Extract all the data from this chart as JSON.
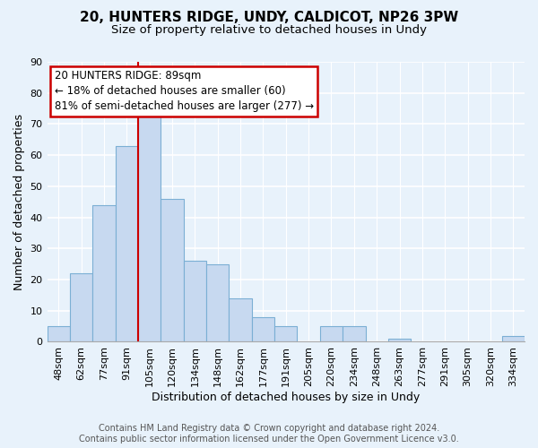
{
  "title_line1": "20, HUNTERS RIDGE, UNDY, CALDICOT, NP26 3PW",
  "title_line2": "Size of property relative to detached houses in Undy",
  "xlabel": "Distribution of detached houses by size in Undy",
  "ylabel": "Number of detached properties",
  "bar_labels": [
    "48sqm",
    "62sqm",
    "77sqm",
    "91sqm",
    "105sqm",
    "120sqm",
    "134sqm",
    "148sqm",
    "162sqm",
    "177sqm",
    "191sqm",
    "205sqm",
    "220sqm",
    "234sqm",
    "248sqm",
    "263sqm",
    "277sqm",
    "291sqm",
    "305sqm",
    "320sqm",
    "334sqm"
  ],
  "bar_values": [
    5,
    22,
    44,
    63,
    73,
    46,
    26,
    25,
    14,
    8,
    5,
    0,
    5,
    5,
    0,
    1,
    0,
    0,
    0,
    0,
    2
  ],
  "bar_color": "#c7d9f0",
  "bar_edge_color": "#7bafd4",
  "vline_x": 3.5,
  "vline_color": "#cc0000",
  "annotation_text": "20 HUNTERS RIDGE: 89sqm\n← 18% of detached houses are smaller (60)\n81% of semi-detached houses are larger (277) →",
  "annotation_box_color": "#ffffff",
  "annotation_box_edge": "#cc0000",
  "ylim": [
    0,
    90
  ],
  "yticks": [
    0,
    10,
    20,
    30,
    40,
    50,
    60,
    70,
    80,
    90
  ],
  "footer_line1": "Contains HM Land Registry data © Crown copyright and database right 2024.",
  "footer_line2": "Contains public sector information licensed under the Open Government Licence v3.0.",
  "bg_color": "#e8f2fb",
  "plot_bg_color": "#e8f2fb",
  "grid_color": "#ffffff",
  "title_fontsize": 11,
  "subtitle_fontsize": 9.5,
  "axis_label_fontsize": 9,
  "tick_fontsize": 8,
  "annotation_fontsize": 8.5,
  "footer_fontsize": 7
}
